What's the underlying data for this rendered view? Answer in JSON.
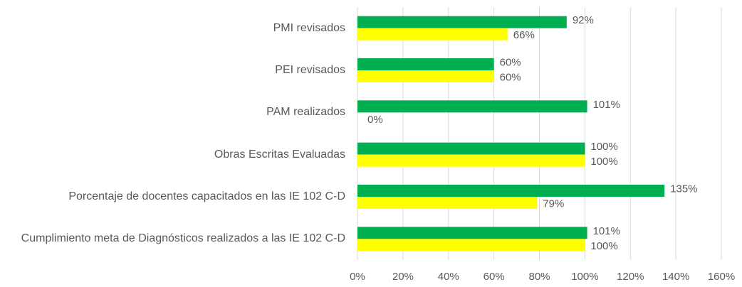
{
  "chart_data": {
    "type": "hbar",
    "categories": [
      "PMI revisados",
      "PEI revisados",
      "PAM realizados",
      "Obras Escritas Evaluadas",
      "Porcentaje de docentes capacitados en las IE 102 C-D",
      "Cumplimiento meta de Diagnósticos realizados a las IE 102 C-D"
    ],
    "series": [
      {
        "color": "#00b050",
        "values": [
          92,
          60,
          101,
          100,
          135,
          101
        ],
        "value_labels": [
          "92%",
          "60%",
          "101%",
          "100%",
          "135%",
          "101%"
        ]
      },
      {
        "color": "#ffff00",
        "values": [
          66,
          60,
          0,
          100,
          79,
          100
        ],
        "value_labels": [
          "66%",
          "60%",
          "0%",
          "100%",
          "79%",
          "100%"
        ]
      }
    ],
    "xlim": [
      0,
      160
    ],
    "xticks": [
      {
        "value": 0,
        "label": "0%"
      },
      {
        "value": 20,
        "label": "20%"
      },
      {
        "value": 40,
        "label": "40%"
      },
      {
        "value": 60,
        "label": "60%"
      },
      {
        "value": 80,
        "label": "80%"
      },
      {
        "value": 100,
        "label": "100%"
      },
      {
        "value": 120,
        "label": "120%"
      },
      {
        "value": 140,
        "label": "140%"
      },
      {
        "value": 160,
        "label": "160%"
      }
    ],
    "grid": true
  }
}
